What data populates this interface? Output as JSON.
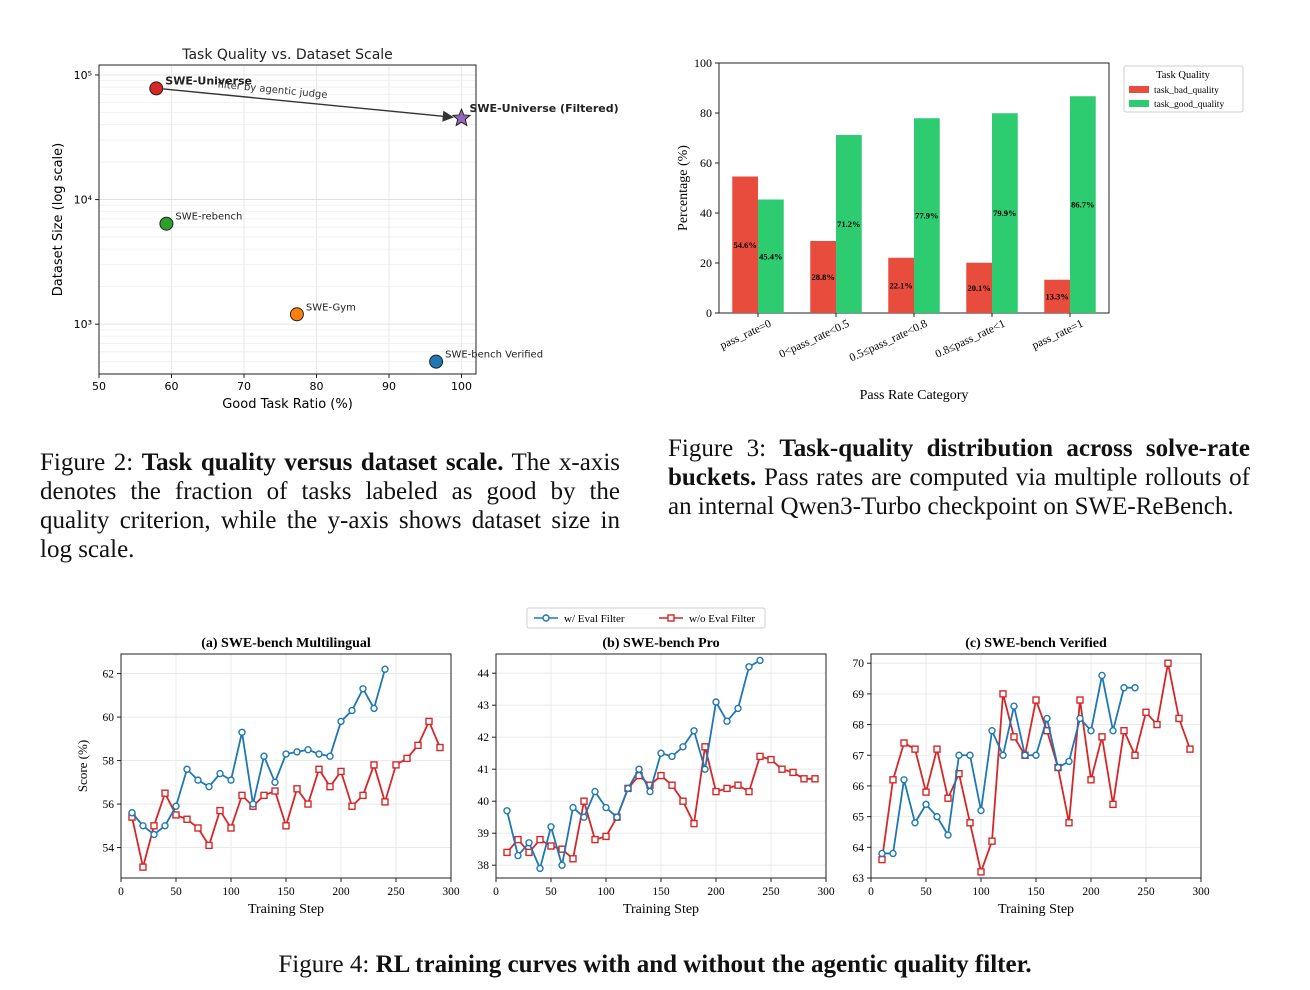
{
  "fig2": {
    "caption_label": "Figure 2:",
    "caption_bold": "Task quality versus dataset scale.",
    "caption_text": "The x-axis denotes the fraction of tasks labeled as good by the quality criterion, while the y-axis shows dataset size in log scale."
  },
  "fig3": {
    "caption_label": "Figure 3:",
    "caption_bold": "Task-quality distribution across solve-rate buckets.",
    "caption_text": "Pass rates are computed via multiple rollouts of an internal Qwen3-Turbo checkpoint on SWE-ReBench."
  },
  "fig4": {
    "caption_label": "Figure 4:",
    "caption_bold": "RL training curves with and without the agentic quality filter.",
    "legend": [
      "w/ Eval Filter",
      "w/o Eval Filter"
    ]
  },
  "chart_data": [
    {
      "id": "fig2",
      "type": "scatter",
      "title": "Task Quality vs. Dataset Scale",
      "xlabel": "Good Task Ratio (%)",
      "ylabel": "Dataset Size (log scale)",
      "xlim": [
        50,
        102
      ],
      "ylim_log10": [
        2.6,
        5.08
      ],
      "xticks": [
        50,
        60,
        70,
        80,
        90,
        100
      ],
      "yticks": [
        {
          "v": 3,
          "label": "10³"
        },
        {
          "v": 4,
          "label": "10⁴"
        },
        {
          "v": 5,
          "label": "10⁵"
        }
      ],
      "grid": true,
      "points": [
        {
          "name": "SWE-Universe",
          "x": 57.9,
          "y": 78000,
          "color": "#d62728",
          "marker": "circle",
          "bold": true
        },
        {
          "name": "SWE-Universe (Filtered)",
          "x": 100,
          "y": 45000,
          "color": "#9467bd",
          "marker": "star",
          "bold": true
        },
        {
          "name": "SWE-rebench",
          "x": 59.3,
          "y": 6400,
          "color": "#2ca02c",
          "marker": "circle",
          "bold": false
        },
        {
          "name": "SWE-Gym",
          "x": 77.3,
          "y": 1200,
          "color": "#ff7f0e",
          "marker": "circle",
          "bold": false
        },
        {
          "name": "SWE-bench Verified",
          "x": 96.5,
          "y": 500,
          "color": "#1f77b4",
          "marker": "circle",
          "bold": false
        }
      ],
      "annotation": "filter by agentic judge"
    },
    {
      "id": "fig3",
      "type": "bar",
      "title": "",
      "xlabel": "Pass Rate Category",
      "ylabel": "Percentage (%)",
      "ylim": [
        0,
        100
      ],
      "yticks": [
        0,
        20,
        40,
        60,
        80,
        100
      ],
      "legend_title": "Task Quality",
      "legend_position": "top-right",
      "categories": [
        "pass_rate=0",
        "0<pass_rate<0.5",
        "0.5≤pass_rate<0.8",
        "0.8≤pass_rate<1",
        "pass_rate=1"
      ],
      "series": [
        {
          "name": "task_bad_quality",
          "color": "#e74c3c",
          "values": [
            54.6,
            28.8,
            22.1,
            20.1,
            13.3
          ],
          "labels": [
            "54.6%",
            "28.8%",
            "22.1%",
            "20.1%",
            "13.3%"
          ]
        },
        {
          "name": "task_good_quality",
          "color": "#2ecc71",
          "values": [
            45.4,
            71.2,
            77.9,
            79.9,
            86.7
          ],
          "labels": [
            "45.4%",
            "71.2%",
            "77.9%",
            "79.9%",
            "86.7%"
          ]
        }
      ]
    },
    {
      "id": "fig4a",
      "type": "line",
      "title": "(a) SWE-bench Multilingual",
      "xlabel": "Training Step",
      "ylabel": "Score (%)",
      "xlim": [
        0,
        300
      ],
      "ylim": [
        52.6,
        62.9
      ],
      "xticks": [
        0,
        50,
        100,
        150,
        200,
        250,
        300
      ],
      "yticks": [
        54,
        56,
        58,
        60,
        62
      ],
      "series": [
        {
          "name": "w/ Eval Filter",
          "color": "#1f77b4",
          "marker": "circle",
          "x": [
            10,
            20,
            30,
            40,
            50,
            60,
            70,
            80,
            90,
            100,
            110,
            120,
            130,
            140,
            150,
            160,
            170,
            180,
            190,
            200,
            210,
            220,
            230,
            240
          ],
          "y": [
            55.6,
            55.0,
            54.6,
            55.0,
            55.9,
            57.6,
            57.1,
            56.8,
            57.4,
            57.1,
            59.3,
            56.0,
            58.2,
            57.0,
            58.3,
            58.4,
            58.5,
            58.3,
            58.2,
            59.8,
            60.3,
            61.3,
            60.4,
            62.2
          ]
        },
        {
          "name": "w/o Eval Filter",
          "color": "#d62728",
          "marker": "square",
          "x": [
            10,
            20,
            30,
            40,
            50,
            60,
            70,
            80,
            90,
            100,
            110,
            120,
            130,
            140,
            150,
            160,
            170,
            180,
            190,
            200,
            210,
            220,
            230,
            240,
            250,
            260,
            270,
            280,
            290
          ],
          "y": [
            55.4,
            53.1,
            55.0,
            56.5,
            55.5,
            55.3,
            54.9,
            54.1,
            55.7,
            54.9,
            56.4,
            55.9,
            56.4,
            56.6,
            55.0,
            56.7,
            56.0,
            57.6,
            56.8,
            57.5,
            55.9,
            56.4,
            57.8,
            56.1,
            57.8,
            58.1,
            58.7,
            59.8,
            58.6
          ]
        }
      ]
    },
    {
      "id": "fig4b",
      "type": "line",
      "title": "(b) SWE-bench Pro",
      "xlabel": "Training Step",
      "ylabel": "",
      "xlim": [
        0,
        300
      ],
      "ylim": [
        37.6,
        44.6
      ],
      "xticks": [
        0,
        50,
        100,
        150,
        200,
        250,
        300
      ],
      "yticks": [
        38,
        39,
        40,
        41,
        42,
        43,
        44
      ],
      "series": [
        {
          "name": "w/ Eval Filter",
          "color": "#1f77b4",
          "marker": "circle",
          "x": [
            10,
            20,
            30,
            40,
            50,
            60,
            70,
            80,
            90,
            100,
            110,
            120,
            130,
            140,
            150,
            160,
            170,
            180,
            190,
            200,
            210,
            220,
            230,
            240
          ],
          "y": [
            39.7,
            38.3,
            38.7,
            37.9,
            39.2,
            38.0,
            39.8,
            39.5,
            40.3,
            39.8,
            39.5,
            40.4,
            41.0,
            40.3,
            41.5,
            41.4,
            41.7,
            42.2,
            41.0,
            43.1,
            42.5,
            42.9,
            44.2,
            44.4
          ]
        },
        {
          "name": "w/o Eval Filter",
          "color": "#d62728",
          "marker": "square",
          "x": [
            10,
            20,
            30,
            40,
            50,
            60,
            70,
            80,
            90,
            100,
            110,
            120,
            130,
            140,
            150,
            160,
            170,
            180,
            190,
            200,
            210,
            220,
            230,
            240,
            250,
            260,
            270,
            280,
            290
          ],
          "y": [
            38.4,
            38.8,
            38.4,
            38.8,
            38.6,
            38.5,
            38.2,
            40.0,
            38.8,
            38.9,
            39.5,
            40.4,
            40.8,
            40.5,
            40.8,
            40.5,
            40.0,
            39.3,
            41.7,
            40.3,
            40.4,
            40.5,
            40.3,
            41.4,
            41.3,
            41.0,
            40.9,
            40.7,
            40.7
          ]
        }
      ]
    },
    {
      "id": "fig4c",
      "type": "line",
      "title": "(c) SWE-bench Verified",
      "xlabel": "Training Step",
      "ylabel": "",
      "xlim": [
        0,
        300
      ],
      "ylim": [
        63.0,
        70.3
      ],
      "xticks": [
        0,
        50,
        100,
        150,
        200,
        250,
        300
      ],
      "yticks": [
        63,
        64,
        65,
        66,
        67,
        68,
        69,
        70
      ],
      "series": [
        {
          "name": "w/ Eval Filter",
          "color": "#1f77b4",
          "marker": "circle",
          "x": [
            10,
            20,
            30,
            40,
            50,
            60,
            70,
            80,
            90,
            100,
            110,
            120,
            130,
            140,
            150,
            160,
            170,
            180,
            190,
            200,
            210,
            220,
            230,
            240
          ],
          "y": [
            63.8,
            63.8,
            66.2,
            64.8,
            65.4,
            65.0,
            64.4,
            67.0,
            67.0,
            65.2,
            67.8,
            67.0,
            68.6,
            67.0,
            67.0,
            68.2,
            66.6,
            66.8,
            68.2,
            67.8,
            69.6,
            67.8,
            69.2,
            69.2
          ]
        },
        {
          "name": "w/o Eval Filter",
          "color": "#d62728",
          "marker": "square",
          "x": [
            10,
            20,
            30,
            40,
            50,
            60,
            70,
            80,
            90,
            100,
            110,
            120,
            130,
            140,
            150,
            160,
            170,
            180,
            190,
            200,
            210,
            220,
            230,
            240,
            250,
            260,
            270,
            280,
            290
          ],
          "y": [
            63.6,
            66.2,
            67.4,
            67.2,
            65.8,
            67.2,
            65.6,
            66.4,
            64.8,
            63.2,
            64.2,
            69.0,
            67.6,
            67.0,
            68.8,
            67.8,
            66.6,
            64.8,
            68.8,
            66.2,
            67.6,
            65.4,
            67.8,
            67.0,
            68.4,
            68.0,
            70.0,
            68.2,
            67.2
          ]
        }
      ]
    }
  ]
}
